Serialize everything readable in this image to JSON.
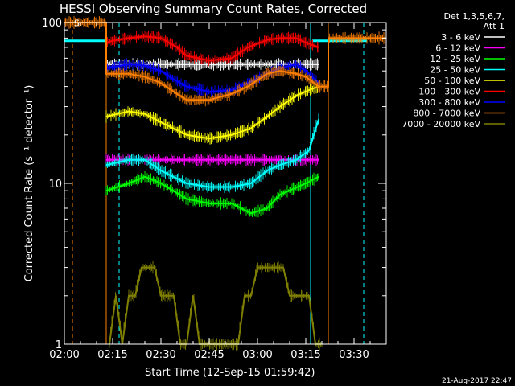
{
  "chart_data": {
    "type": "line",
    "title": "HESSI Observing Summary Count Rates, Corrected",
    "xlabel": "Start Time (12-Sep-15 01:59:42)",
    "ylabel": "Corrected Count Rate (s⁻¹ detector⁻¹)",
    "x_ticks": [
      "02:00",
      "02:15",
      "02:30",
      "02:45",
      "03:00",
      "03:15",
      "03:30"
    ],
    "y_ticks": [
      "1",
      "10",
      "100"
    ],
    "yscale": "log",
    "ylim": [
      1,
      100
    ],
    "xlim_minutes": [
      0,
      100
    ],
    "grid": false,
    "legend_position": "top-right",
    "legend_header": [
      "Det 1,3,5,6,7,",
      "Att 1"
    ],
    "series": [
      {
        "name": "3 - 6 keV",
        "color": "#ffffff",
        "x": [
          13,
          20,
          30,
          38,
          45,
          52,
          60,
          67,
          75,
          79
        ],
        "y": [
          55,
          55,
          55,
          55,
          55,
          55,
          55,
          55,
          55,
          55
        ]
      },
      {
        "name": "6 - 12 keV",
        "color": "#ff00ff",
        "x": [
          13,
          20,
          30,
          38,
          45,
          52,
          60,
          67,
          75,
          79
        ],
        "y": [
          14,
          14,
          14,
          14,
          14,
          14,
          14,
          14,
          14,
          14
        ]
      },
      {
        "name": "12 - 25 keV",
        "color": "#00ff00",
        "x": [
          13,
          20,
          25,
          30,
          38,
          45,
          52,
          58,
          63,
          67,
          75,
          79
        ],
        "y": [
          9,
          10,
          11,
          10,
          8,
          7.5,
          7.5,
          6.5,
          7,
          8.5,
          10,
          11
        ]
      },
      {
        "name": "25 - 50 keV",
        "color": "#00ffff",
        "x": [
          13,
          20,
          25,
          30,
          38,
          45,
          52,
          58,
          63,
          67,
          72,
          76,
          79
        ],
        "y": [
          13,
          14,
          14,
          12,
          10,
          9.5,
          9.5,
          10,
          12,
          13,
          14,
          16,
          25
        ]
      },
      {
        "name": "50 - 100 keV",
        "color": "#ffff00",
        "x": [
          13,
          20,
          25,
          30,
          38,
          45,
          52,
          58,
          63,
          67,
          72,
          76,
          79
        ],
        "y": [
          26,
          28,
          27,
          24,
          20,
          19,
          20,
          22,
          26,
          30,
          35,
          38,
          40
        ]
      },
      {
        "name": "100 - 300 keV",
        "color": "#ff0000",
        "x": [
          13,
          15,
          20,
          25,
          30,
          35,
          38,
          45,
          52,
          57,
          63,
          67,
          72,
          75,
          79
        ],
        "y": [
          75,
          77,
          80,
          82,
          80,
          70,
          62,
          58,
          60,
          70,
          78,
          80,
          80,
          75,
          70
        ]
      },
      {
        "name": "300 - 800 keV",
        "color": "#0000ff",
        "x": [
          13,
          20,
          25,
          30,
          35,
          38,
          45,
          52,
          57,
          63,
          67,
          72,
          75,
          79
        ],
        "y": [
          52,
          55,
          54,
          50,
          43,
          40,
          37,
          38,
          42,
          48,
          52,
          55,
          50,
          42
        ]
      },
      {
        "name": "800 - 7000 keV",
        "color": "#ff8000",
        "x": [
          0,
          13,
          13,
          20,
          25,
          30,
          35,
          38,
          45,
          52,
          57,
          63,
          67,
          72,
          75,
          79,
          82,
          82,
          100
        ],
        "y": [
          100,
          100,
          48,
          48,
          46,
          42,
          36,
          33,
          33,
          36,
          40,
          48,
          50,
          48,
          46,
          40,
          40,
          80,
          80
        ]
      },
      {
        "name": "7000 - 20000 keV",
        "color": "#808000",
        "x": [
          14,
          16,
          18,
          20,
          22,
          24,
          26,
          28,
          30,
          32,
          34,
          36,
          38,
          40,
          42,
          44,
          46,
          48,
          50,
          52,
          54,
          56,
          58,
          60,
          62,
          64,
          66,
          68,
          70,
          72,
          74,
          76,
          78,
          80
        ],
        "y": [
          1,
          2,
          1,
          2,
          2,
          3,
          3,
          3,
          2,
          2,
          2,
          1,
          1,
          2,
          1,
          1,
          1,
          1,
          1,
          1,
          1,
          2,
          2,
          3,
          3,
          3,
          3,
          3,
          2,
          2,
          2,
          2,
          1,
          1
        ]
      }
    ],
    "annotations": [
      {
        "text": "S",
        "x": 3,
        "y": 95,
        "color": "#ff8000"
      }
    ],
    "vlines": [
      {
        "x": 2.5,
        "color": "#ff8000",
        "style": "dashed"
      },
      {
        "x": 13,
        "color": "#ff8000",
        "style": "solid"
      },
      {
        "x": 17,
        "color": "#00ffff",
        "style": "dashed"
      },
      {
        "x": 76.5,
        "color": "#00ffff",
        "style": "solid"
      },
      {
        "x": 82,
        "color": "#ff8000",
        "style": "solid"
      },
      {
        "x": 93,
        "color": "#00ffff",
        "style": "dashed"
      }
    ],
    "hlines": [
      {
        "y": 77,
        "x_from": 0,
        "x_to": 13,
        "color": "#00ffff"
      },
      {
        "y": 77,
        "x_from": 77,
        "x_to": 94,
        "color": "#00ffff"
      }
    ],
    "footer": "21-Aug-2017 22:47"
  }
}
